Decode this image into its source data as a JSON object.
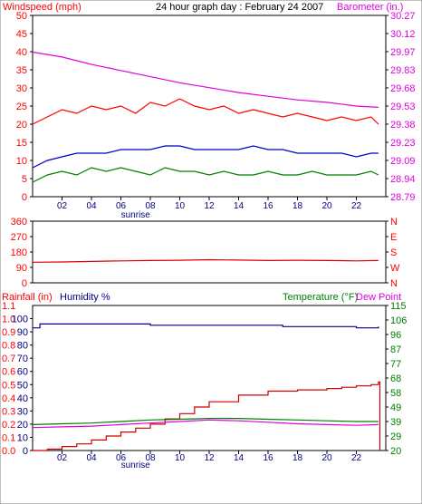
{
  "colors": {
    "background": "#ffffff",
    "plot_background": "#ffffff",
    "frame": "#000000",
    "windspeed": "#e00000",
    "gust": "#ff0000",
    "avg_wind": "#0000c0",
    "low_wind": "#008000",
    "barometer": "#e000e0",
    "direction": "#e00000",
    "rainfall": "#d00000",
    "humidity": "#00008b",
    "temperature": "#008000",
    "dew_point": "#e000e0",
    "label_red": "#ff0000",
    "label_magenta": "#e000e0",
    "label_navy": "#000080",
    "label_green": "#008000"
  },
  "chart_data": [
    {
      "type": "line",
      "title": "24 hour graph day : February 24 2007",
      "left_axis_label": "Windspeed (mph)",
      "right_axis_label": "Barometer (in.)",
      "sunrise_label": "sunrise",
      "sunrise_x": 7,
      "x_ticks": [
        "02",
        "04",
        "06",
        "08",
        "10",
        "12",
        "14",
        "16",
        "18",
        "20",
        "22"
      ],
      "xlim": [
        0,
        24
      ],
      "ylim_left": [
        0,
        50
      ],
      "left_ticks": [
        "0",
        "5",
        "10",
        "15",
        "20",
        "25",
        "30",
        "35",
        "40",
        "45",
        "50"
      ],
      "ylim_right": [
        28.79,
        30.27
      ],
      "right_ticks": [
        "28.79",
        "28.94",
        "29.09",
        "29.23",
        "29.38",
        "29.53",
        "29.68",
        "29.83",
        "29.97",
        "30.12",
        "30.27"
      ],
      "series": [
        {
          "key": "gust",
          "x": [
            0,
            1,
            2,
            3,
            4,
            5,
            6,
            7,
            8,
            9,
            10,
            11,
            12,
            13,
            14,
            15,
            16,
            17,
            18,
            19,
            20,
            21,
            22,
            23,
            23.5
          ],
          "values": [
            20,
            22,
            24,
            23,
            25,
            24,
            25,
            23,
            26,
            25,
            27,
            25,
            24,
            25,
            23,
            24,
            23,
            22,
            23,
            22,
            21,
            22,
            21,
            22,
            20
          ]
        },
        {
          "key": "avg_wind",
          "x": [
            0,
            1,
            2,
            3,
            4,
            5,
            6,
            7,
            8,
            9,
            10,
            11,
            12,
            13,
            14,
            15,
            16,
            17,
            18,
            19,
            20,
            21,
            22,
            23,
            23.5
          ],
          "values": [
            8,
            10,
            11,
            12,
            12,
            12,
            13,
            13,
            13,
            14,
            14,
            13,
            13,
            13,
            13,
            14,
            13,
            13,
            12,
            12,
            12,
            12,
            11,
            12,
            12
          ]
        },
        {
          "key": "low_wind",
          "x": [
            0,
            1,
            2,
            3,
            4,
            5,
            6,
            7,
            8,
            9,
            10,
            11,
            12,
            13,
            14,
            15,
            16,
            17,
            18,
            19,
            20,
            21,
            22,
            23,
            23.5
          ],
          "values": [
            4,
            6,
            7,
            6,
            8,
            7,
            8,
            7,
            6,
            8,
            7,
            7,
            6,
            7,
            6,
            6,
            7,
            6,
            6,
            7,
            6,
            6,
            6,
            7,
            6
          ]
        },
        {
          "key": "barometer",
          "x": [
            0,
            2,
            4,
            6,
            8,
            10,
            12,
            14,
            16,
            18,
            20,
            22,
            23.5
          ],
          "values": [
            29.97,
            29.93,
            29.87,
            29.82,
            29.77,
            29.72,
            29.68,
            29.64,
            29.61,
            29.58,
            29.56,
            29.53,
            29.52
          ]
        }
      ]
    },
    {
      "type": "scatter",
      "left_axis_label": "",
      "left_ticks": [
        "0",
        "90",
        "180",
        "270",
        "360"
      ],
      "right_ticks": [
        "N",
        "W",
        "S",
        "E",
        "N"
      ],
      "ylim": [
        0,
        360
      ],
      "xlim": [
        0,
        24
      ],
      "series": [
        {
          "key": "direction",
          "x": [
            0,
            2,
            4,
            6,
            8,
            10,
            12,
            14,
            16,
            18,
            20,
            22,
            23.5
          ],
          "values": [
            120,
            122,
            125,
            128,
            130,
            132,
            135,
            133,
            130,
            132,
            130,
            128,
            130
          ]
        }
      ]
    },
    {
      "type": "line",
      "left_axis_label": "Rainfall (in)",
      "humidity_label": "Humidity %",
      "right_axis_label": "Temperature (°F)",
      "right_axis_label_2": "Dew Point",
      "sunrise_label": "sunrise",
      "sunrise_x": 7,
      "x_ticks": [
        "02",
        "04",
        "06",
        "08",
        "10",
        "12",
        "14",
        "16",
        "18",
        "20",
        "22"
      ],
      "xlim": [
        0,
        24
      ],
      "left_ticks_outer": [
        "0.0",
        "0.1",
        "0.2",
        "0.3",
        "0.4",
        "0.5",
        "0.6",
        "0.7",
        "0.8",
        "0.9",
        "1.0",
        "1.1"
      ],
      "left_ticks_inner": [
        "0",
        "10",
        "20",
        "30",
        "40",
        "50",
        "60",
        "70",
        "80",
        "90",
        "100"
      ],
      "ylim_rain": [
        0,
        1.1
      ],
      "ylim_humidity": [
        0,
        100
      ],
      "right_ticks": [
        "20",
        "29",
        "39",
        "49",
        "58",
        "68",
        "77",
        "87",
        "96",
        "106",
        "115"
      ],
      "ylim_right": [
        20,
        115
      ],
      "series": [
        {
          "key": "humidity",
          "x": [
            0,
            0.5,
            7,
            8,
            12,
            16,
            17,
            20,
            22,
            23.5
          ],
          "values": [
            93,
            96,
            96,
            95,
            95,
            95,
            94,
            94,
            93,
            94
          ]
        },
        {
          "key": "rainfall",
          "x": [
            0,
            1,
            2,
            3,
            4,
            5,
            6,
            7,
            8,
            9,
            10,
            11,
            12,
            14,
            16,
            18,
            20,
            21,
            22,
            23,
            23.5,
            23.6
          ],
          "values": [
            0,
            0.01,
            0.03,
            0.05,
            0.08,
            0.11,
            0.14,
            0.17,
            0.2,
            0.24,
            0.28,
            0.33,
            0.37,
            0.42,
            0.45,
            0.46,
            0.47,
            0.48,
            0.49,
            0.5,
            0.52,
            0.0
          ]
        },
        {
          "key": "temperature",
          "x": [
            0,
            2,
            4,
            6,
            8,
            10,
            12,
            14,
            16,
            18,
            20,
            22,
            23.5
          ],
          "values": [
            37,
            37.5,
            38,
            39,
            40,
            40.5,
            41,
            41,
            40.5,
            40,
            39.5,
            39,
            39
          ]
        },
        {
          "key": "dew_point",
          "x": [
            0,
            2,
            4,
            6,
            8,
            10,
            12,
            14,
            16,
            18,
            20,
            22,
            23.5
          ],
          "values": [
            35,
            35.5,
            36,
            37,
            38,
            39,
            40,
            39.5,
            38.5,
            37.5,
            37,
            36.5,
            37
          ]
        }
      ]
    }
  ]
}
